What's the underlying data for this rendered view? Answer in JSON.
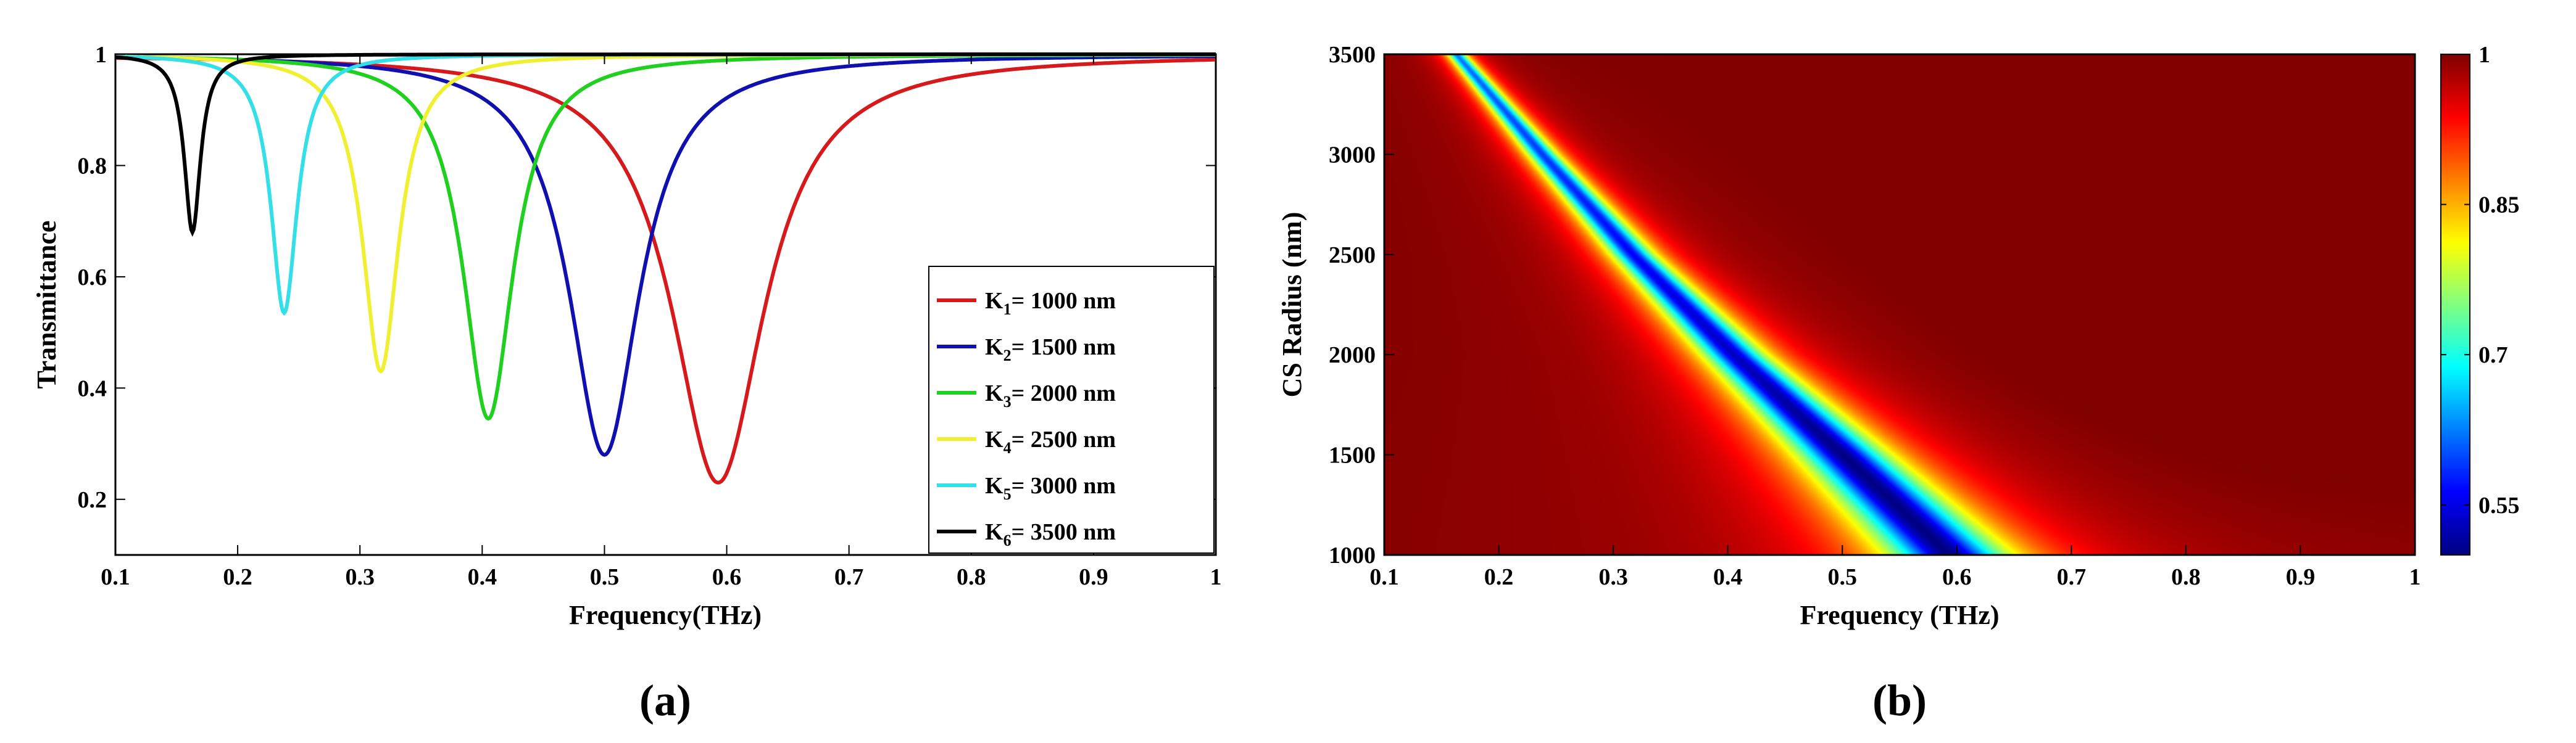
{
  "colors": {
    "k1": "#d7191c",
    "k2": "#1010b0",
    "k3": "#1fd01f",
    "k4": "#f0f030",
    "k5": "#33e0e8",
    "k6": "#000000"
  },
  "panels": {
    "a_label": "(a)",
    "b_label": "(b)"
  },
  "chart_data": [
    {
      "type": "line",
      "panel": "a",
      "xlabel": "Frequency(THz)",
      "ylabel": "Transmittance",
      "xlim": [
        0.1,
        1.0
      ],
      "ylim": [
        0.1,
        1.0
      ],
      "xticks": [
        0.1,
        0.2,
        0.3,
        0.4,
        0.5,
        0.6,
        0.7,
        0.8,
        0.9,
        1.0
      ],
      "xtick_labels": [
        "0.1",
        "0.2",
        "0.3",
        "0.4",
        "0.5",
        "0.6",
        "0.7",
        "0.8",
        "0.9",
        "1"
      ],
      "yticks": [
        0.2,
        0.4,
        0.6,
        0.8,
        1.0
      ],
      "ytick_labels": [
        "0.2",
        "0.4",
        "0.6",
        "0.8",
        "1"
      ],
      "legend_position": "right",
      "series": [
        {
          "name": "K1",
          "sub": "1",
          "value_text": "= 1000 nm",
          "color_key": "k1",
          "f0": 0.593,
          "min": 0.23,
          "width": 0.092
        },
        {
          "name": "K2",
          "sub": "2",
          "value_text": "= 1500 nm",
          "color_key": "k2",
          "f0": 0.5,
          "min": 0.28,
          "width": 0.07
        },
        {
          "name": "K3",
          "sub": "3",
          "value_text": "= 2000 nm",
          "color_key": "k3",
          "f0": 0.405,
          "min": 0.345,
          "width": 0.05
        },
        {
          "name": "K4",
          "sub": "4",
          "value_text": "= 2500 nm",
          "color_key": "k4",
          "f0": 0.317,
          "min": 0.43,
          "width": 0.036
        },
        {
          "name": "K5",
          "sub": "5",
          "value_text": "= 3000 nm",
          "color_key": "k5",
          "f0": 0.238,
          "min": 0.535,
          "width": 0.026
        },
        {
          "name": "K6",
          "sub": "6",
          "value_text": "= 3500 nm",
          "color_key": "k6",
          "f0": 0.163,
          "min": 0.68,
          "width": 0.016
        }
      ]
    },
    {
      "type": "heatmap",
      "panel": "b",
      "xlabel": "Frequency (THz)",
      "ylabel": "CS Radius (nm)",
      "xlim": [
        0.1,
        1.0
      ],
      "ylim": [
        1000,
        3500
      ],
      "xticks": [
        0.1,
        0.2,
        0.3,
        0.4,
        0.5,
        0.6,
        0.7,
        0.8,
        0.9,
        1.0
      ],
      "xtick_labels": [
        "0.1",
        "0.2",
        "0.3",
        "0.4",
        "0.5",
        "0.6",
        "0.7",
        "0.8",
        "0.9",
        "1"
      ],
      "yticks": [
        1000,
        1500,
        2000,
        2500,
        3000,
        3500
      ],
      "ytick_labels": [
        "1000",
        "1500",
        "2000",
        "2500",
        "3000",
        "3500"
      ],
      "colorbar": {
        "range": [
          0.5,
          1.0
        ],
        "ticks": [
          0.55,
          0.7,
          0.85,
          1.0
        ],
        "tick_labels": [
          "0.55",
          "0.7",
          "0.85",
          "1"
        ]
      },
      "resonances": [
        {
          "radius": 1000,
          "f0": 0.593,
          "min": 0.5,
          "width": 0.092
        },
        {
          "radius": 1500,
          "f0": 0.5,
          "min": 0.5,
          "width": 0.07
        },
        {
          "radius": 2000,
          "f0": 0.405,
          "min": 0.53,
          "width": 0.05
        },
        {
          "radius": 2500,
          "f0": 0.317,
          "min": 0.56,
          "width": 0.036
        },
        {
          "radius": 3000,
          "f0": 0.238,
          "min": 0.59,
          "width": 0.026
        },
        {
          "radius": 3500,
          "f0": 0.163,
          "min": 0.62,
          "width": 0.016
        }
      ]
    }
  ]
}
